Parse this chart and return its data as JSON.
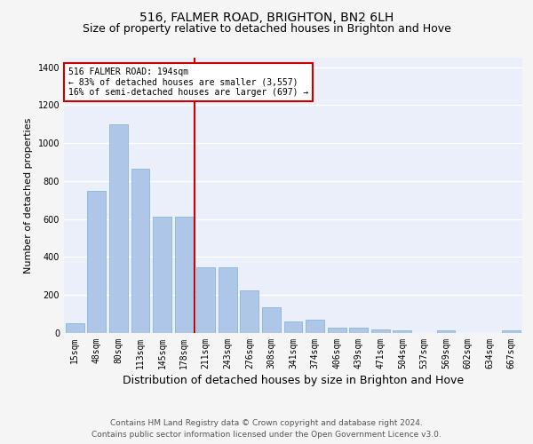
{
  "title": "516, FALMER ROAD, BRIGHTON, BN2 6LH",
  "subtitle": "Size of property relative to detached houses in Brighton and Hove",
  "xlabel": "Distribution of detached houses by size in Brighton and Hove",
  "ylabel": "Number of detached properties",
  "categories": [
    "15sqm",
    "48sqm",
    "80sqm",
    "113sqm",
    "145sqm",
    "178sqm",
    "211sqm",
    "243sqm",
    "276sqm",
    "308sqm",
    "341sqm",
    "374sqm",
    "406sqm",
    "439sqm",
    "471sqm",
    "504sqm",
    "537sqm",
    "569sqm",
    "602sqm",
    "634sqm",
    "667sqm"
  ],
  "values": [
    50,
    750,
    1100,
    865,
    615,
    615,
    345,
    345,
    225,
    135,
    60,
    70,
    30,
    30,
    20,
    15,
    0,
    12,
    0,
    0,
    12
  ],
  "bar_color": "#aec6e8",
  "bar_edgecolor": "#7aafd4",
  "vline_x": 5.5,
  "vline_color": "#cc0000",
  "annotation_text": "516 FALMER ROAD: 194sqm\n← 83% of detached houses are smaller (3,557)\n16% of semi-detached houses are larger (697) →",
  "annotation_box_color": "#ffffff",
  "annotation_box_edgecolor": "#cc0000",
  "ylim": [
    0,
    1450
  ],
  "yticks": [
    0,
    200,
    400,
    600,
    800,
    1000,
    1200,
    1400
  ],
  "background_color": "#eaeff9",
  "grid_color": "#ffffff",
  "footer_line1": "Contains HM Land Registry data © Crown copyright and database right 2024.",
  "footer_line2": "Contains public sector information licensed under the Open Government Licence v3.0.",
  "title_fontsize": 10,
  "subtitle_fontsize": 9,
  "xlabel_fontsize": 9,
  "ylabel_fontsize": 8,
  "tick_fontsize": 7,
  "footer_fontsize": 6.5
}
